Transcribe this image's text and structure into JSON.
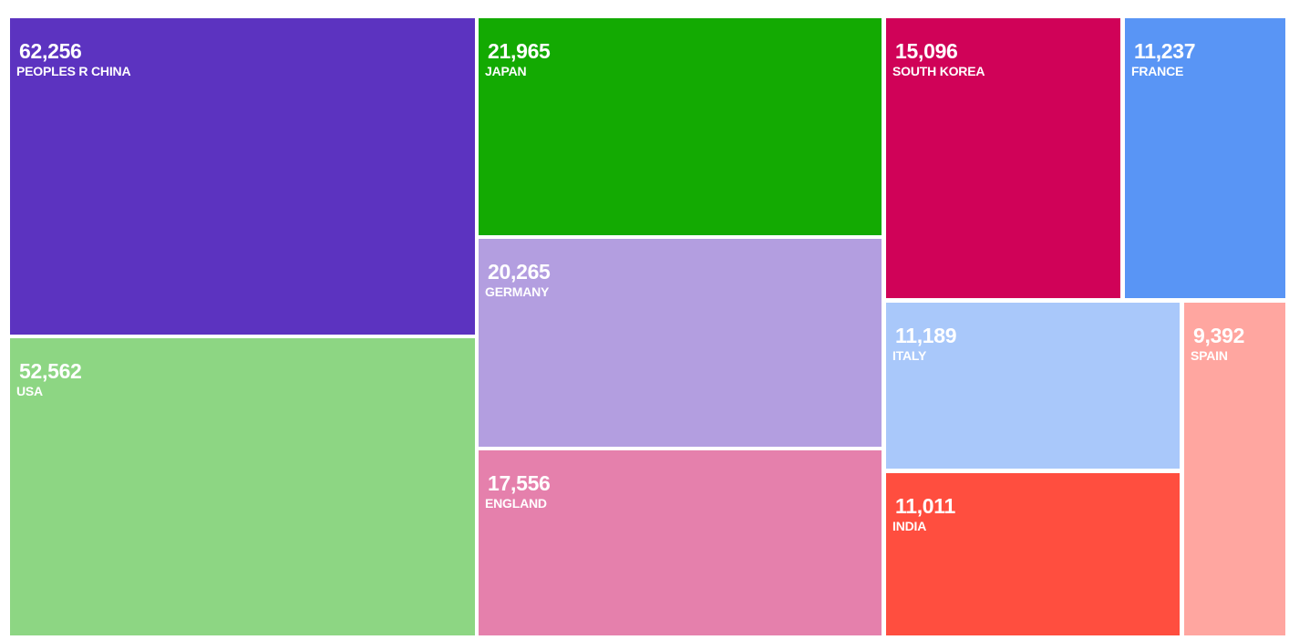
{
  "chart_data": {
    "type": "treemap",
    "title": "",
    "items": [
      {
        "label": "PEOPLES R CHINA",
        "value": 62256,
        "value_text": "62,256",
        "color": "#5c33c0"
      },
      {
        "label": "USA",
        "value": 52562,
        "value_text": "52,562",
        "color": "#8dd683"
      },
      {
        "label": "JAPAN",
        "value": 21965,
        "value_text": "21,965",
        "color": "#13aa02"
      },
      {
        "label": "GERMANY",
        "value": 20265,
        "value_text": "20,265",
        "color": "#b39ee0"
      },
      {
        "label": "ENGLAND",
        "value": 17556,
        "value_text": "17,556",
        "color": "#e580ac"
      },
      {
        "label": "SOUTH KOREA",
        "value": 15096,
        "value_text": "15,096",
        "color": "#d00258"
      },
      {
        "label": "FRANCE",
        "value": 11237,
        "value_text": "11,237",
        "color": "#5995f5"
      },
      {
        "label": "ITALY",
        "value": 11189,
        "value_text": "11,189",
        "color": "#a9c8fa"
      },
      {
        "label": "SPAIN",
        "value": 9392,
        "value_text": "9,392",
        "color": "#ffa6a0"
      },
      {
        "label": "INDIA",
        "value": 11011,
        "value_text": "11,011",
        "color": "#ff4e3f"
      }
    ]
  }
}
